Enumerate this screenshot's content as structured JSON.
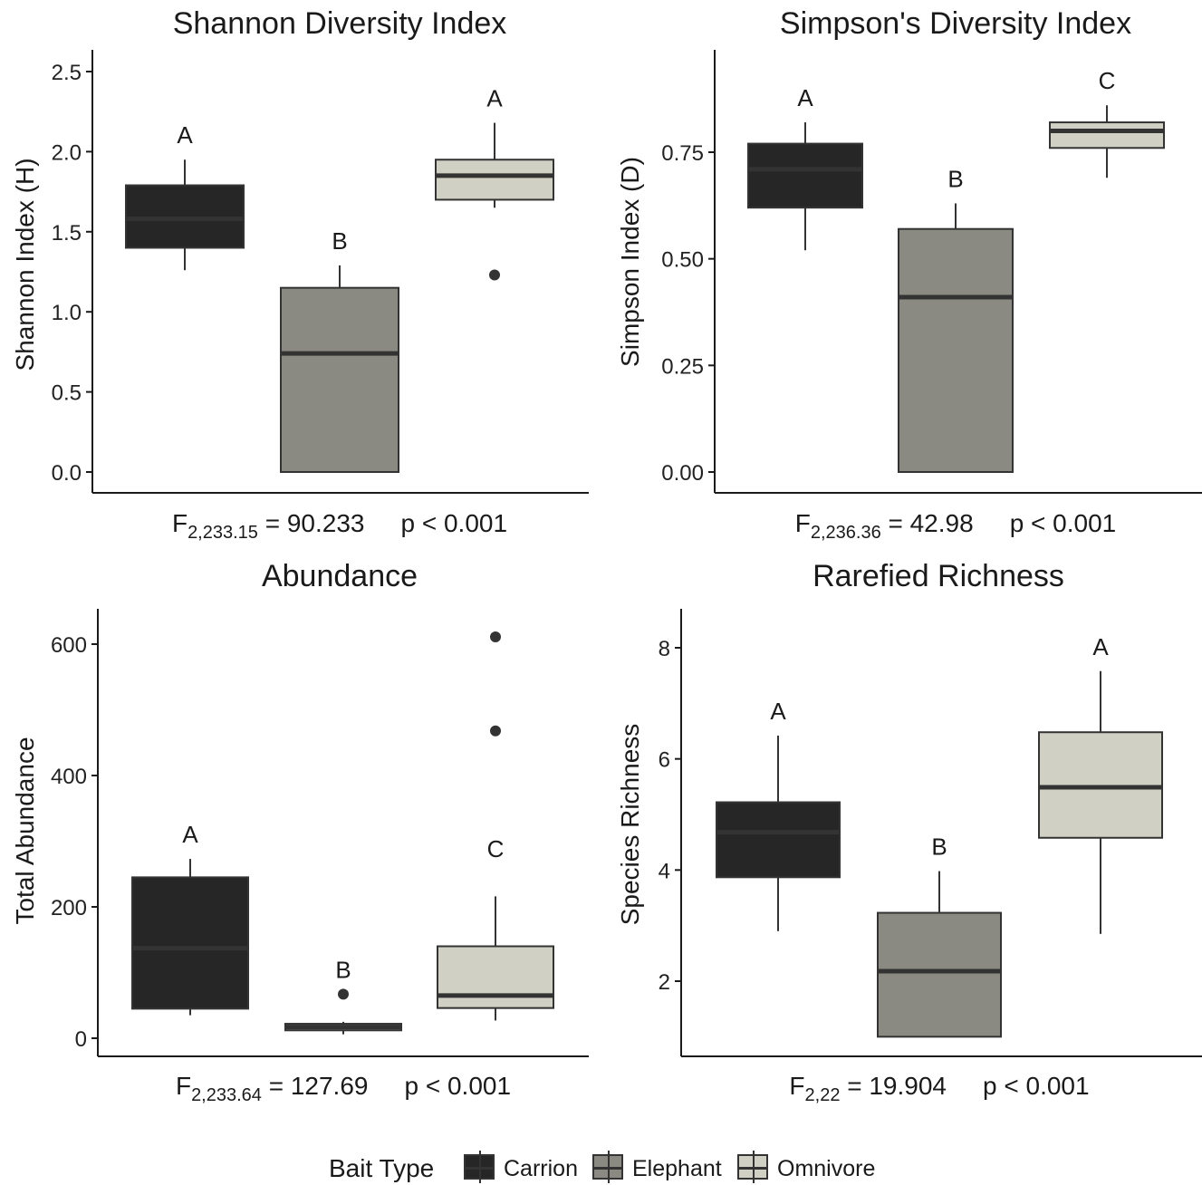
{
  "legend": {
    "title": "Bait Type",
    "items": [
      {
        "label": "Carrion",
        "color": "#262626"
      },
      {
        "label": "Elephant",
        "color": "#8a8a82"
      },
      {
        "label": "Omnivore",
        "color": "#d0d0c4"
      }
    ]
  },
  "chart_data": [
    {
      "type": "box",
      "title": "Shannon Diversity Index",
      "ylabel": "Shannon Index (H)",
      "xlabel": "",
      "ylim": [
        0,
        2.5
      ],
      "yticks": [
        "0.0",
        "0.5",
        "1.0",
        "1.5",
        "2.0",
        "2.5"
      ],
      "stat": {
        "prefix": "F",
        "subscript": "2,233.15",
        "value": "= 90.233",
        "p": "p < 0.001"
      },
      "categories": [
        "Carrion",
        "Elephant",
        "Omnivore"
      ],
      "boxes": [
        {
          "group": "Carrion",
          "whisker_low": 1.26,
          "q1": 1.4,
          "median": 1.58,
          "q3": 1.79,
          "whisker_high": 1.95,
          "outliers": [],
          "letter": "A"
        },
        {
          "group": "Elephant",
          "whisker_low": 0.0,
          "q1": 0.0,
          "median": 0.74,
          "q3": 1.15,
          "whisker_high": 1.29,
          "outliers": [],
          "letter": "B"
        },
        {
          "group": "Omnivore",
          "whisker_low": 1.65,
          "q1": 1.7,
          "median": 1.85,
          "q3": 1.95,
          "whisker_high": 2.18,
          "outliers": [
            1.23
          ],
          "letter": "A"
        }
      ]
    },
    {
      "type": "box",
      "title": "Simpson's Diversity Index",
      "ylabel": "Simpson Index (D)",
      "xlabel": "",
      "ylim": [
        0,
        0.9
      ],
      "yticks": [
        "0.00",
        "0.25",
        "0.50",
        "0.75"
      ],
      "stat": {
        "prefix": "F",
        "subscript": "2,236.36",
        "value": "= 42.98",
        "p": "p < 0.001"
      },
      "categories": [
        "Carrion",
        "Elephant",
        "Omnivore"
      ],
      "boxes": [
        {
          "group": "Carrion",
          "whisker_low": 0.52,
          "q1": 0.62,
          "median": 0.71,
          "q3": 0.77,
          "whisker_high": 0.82,
          "outliers": [],
          "letter": "A"
        },
        {
          "group": "Elephant",
          "whisker_low": 0.0,
          "q1": 0.0,
          "median": 0.41,
          "q3": 0.57,
          "whisker_high": 0.63,
          "outliers": [],
          "letter": "B"
        },
        {
          "group": "Omnivore",
          "whisker_low": 0.69,
          "q1": 0.76,
          "median": 0.8,
          "q3": 0.82,
          "whisker_high": 0.86,
          "outliers": [],
          "letter": "C"
        }
      ]
    },
    {
      "type": "box",
      "title": "Abundance",
      "ylabel": "Total Abundance",
      "xlabel": "",
      "ylim": [
        0,
        600
      ],
      "yticks": [
        "0",
        "200",
        "400",
        "600"
      ],
      "stat": {
        "prefix": "F",
        "subscript": "2,233.64",
        "value": "= 127.69",
        "p": "p < 0.001"
      },
      "categories": [
        "Carrion",
        "Elephant",
        "Omnivore"
      ],
      "boxes": [
        {
          "group": "Carrion",
          "whisker_low": 35,
          "q1": 45,
          "median": 137,
          "q3": 245,
          "whisker_high": 273,
          "outliers": [],
          "letter": "A"
        },
        {
          "group": "Elephant",
          "whisker_low": 6,
          "q1": 12,
          "median": 17,
          "q3": 22,
          "whisker_high": 25,
          "outliers": [
            67
          ],
          "letter": "B"
        },
        {
          "group": "Omnivore",
          "whisker_low": 27,
          "q1": 46,
          "median": 65,
          "q3": 140,
          "whisker_high": 216,
          "outliers": [
            468,
            611
          ],
          "letter": "C"
        }
      ]
    },
    {
      "type": "box",
      "title": "Rarefied Richness",
      "ylabel": "Species Richness",
      "xlabel": "",
      "ylim": [
        1,
        8
      ],
      "yticks": [
        "2",
        "4",
        "6",
        "8"
      ],
      "stat": {
        "prefix": "F",
        "subscript": "2,22",
        "value": "= 19.904",
        "p": "p < 0.001"
      },
      "categories": [
        "Carrion",
        "Elephant",
        "Omnivore"
      ],
      "boxes": [
        {
          "group": "Carrion",
          "whisker_low": 2.9,
          "q1": 3.87,
          "median": 4.68,
          "q3": 5.22,
          "whisker_high": 6.42,
          "outliers": [],
          "letter": "A"
        },
        {
          "group": "Elephant",
          "whisker_low": 1.0,
          "q1": 1.0,
          "median": 2.18,
          "q3": 3.23,
          "whisker_high": 3.98,
          "outliers": [],
          "letter": "B"
        },
        {
          "group": "Omnivore",
          "whisker_low": 2.85,
          "q1": 4.58,
          "median": 5.49,
          "q3": 6.48,
          "whisker_high": 7.58,
          "outliers": [],
          "letter": "A"
        }
      ]
    }
  ]
}
